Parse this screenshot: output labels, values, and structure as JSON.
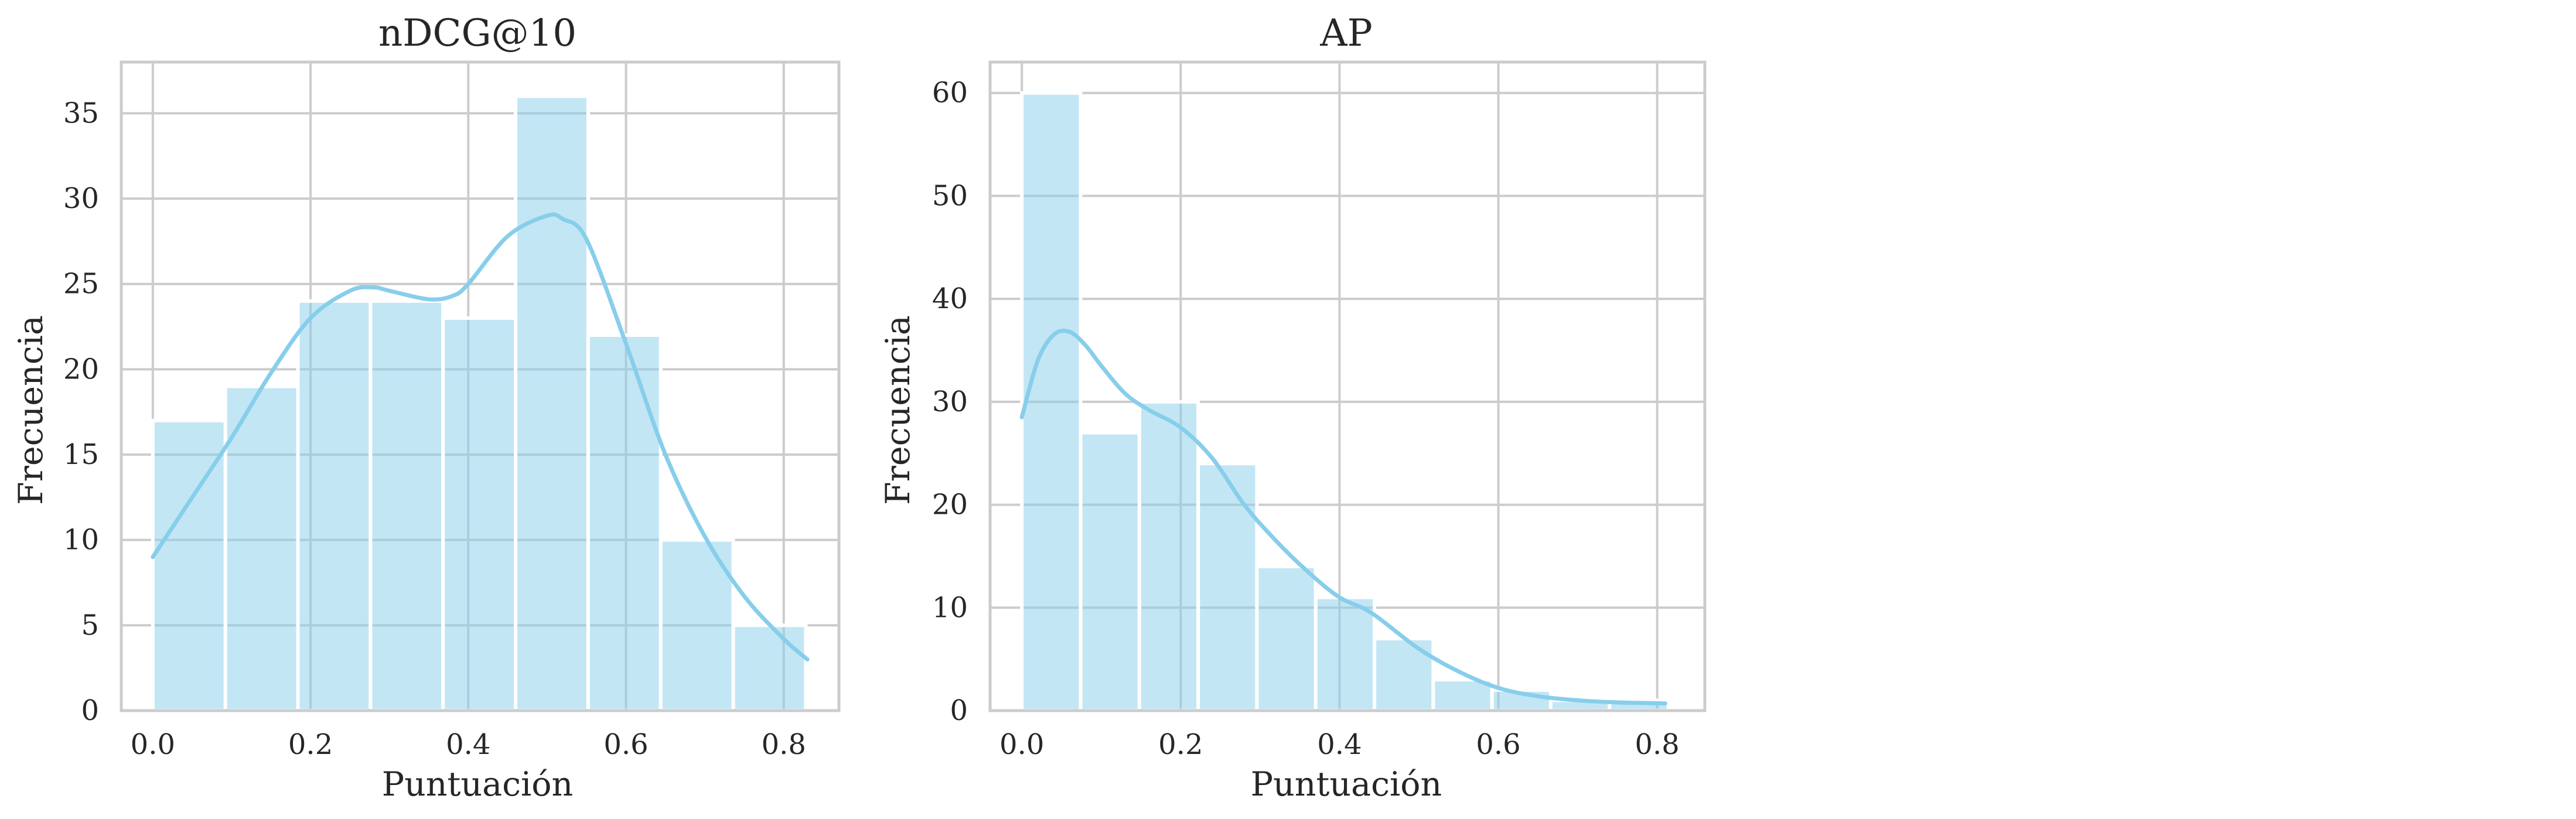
{
  "style": {
    "bar_color": "#87ceeb",
    "bar_opacity": 0.5,
    "kde_color": "#87ceeb",
    "grid_color": "#cccccc",
    "text_color": "#262626"
  },
  "chart_data": [
    {
      "type": "bar",
      "subtype": "histogram-with-kde",
      "title": "nDCG@10",
      "xlabel": "Puntuación",
      "ylabel": "Frecuencia",
      "xlim": [
        -0.04,
        0.87
      ],
      "ylim": [
        0,
        38
      ],
      "xticks": [
        0.0,
        0.2,
        0.4,
        0.6,
        0.8
      ],
      "xtick_labels": [
        "0.0",
        "0.2",
        "0.4",
        "0.6",
        "0.8"
      ],
      "yticks": [
        0,
        5,
        10,
        15,
        20,
        25,
        30,
        35
      ],
      "ytick_labels": [
        "0",
        "5",
        "10",
        "15",
        "20",
        "25",
        "30",
        "35"
      ],
      "grid": true,
      "bins": [
        {
          "x0": 0.0,
          "x1": 0.092,
          "count": 17
        },
        {
          "x0": 0.092,
          "x1": 0.184,
          "count": 19
        },
        {
          "x0": 0.184,
          "x1": 0.276,
          "count": 24
        },
        {
          "x0": 0.276,
          "x1": 0.368,
          "count": 24
        },
        {
          "x0": 0.368,
          "x1": 0.46,
          "count": 23
        },
        {
          "x0": 0.46,
          "x1": 0.552,
          "count": 36
        },
        {
          "x0": 0.552,
          "x1": 0.644,
          "count": 22
        },
        {
          "x0": 0.644,
          "x1": 0.736,
          "count": 10
        },
        {
          "x0": 0.736,
          "x1": 0.828,
          "count": 5
        }
      ],
      "kde": {
        "x": [
          0.0,
          0.05,
          0.1,
          0.15,
          0.2,
          0.25,
          0.28,
          0.3,
          0.35,
          0.38,
          0.4,
          0.45,
          0.5,
          0.52,
          0.55,
          0.6,
          0.65,
          0.7,
          0.75,
          0.8,
          0.83
        ],
        "y": [
          9,
          12.5,
          16,
          19.8,
          23,
          24.6,
          24.8,
          24.6,
          24.1,
          24.3,
          25,
          27.8,
          29,
          28.8,
          27.6,
          21.5,
          15,
          10.2,
          6.7,
          4.2,
          3
        ]
      }
    },
    {
      "type": "bar",
      "subtype": "histogram-with-kde",
      "title": "AP",
      "xlabel": "Puntuación",
      "ylabel": "Frecuencia",
      "xlim": [
        -0.04,
        0.86
      ],
      "ylim": [
        0,
        63
      ],
      "xticks": [
        0.0,
        0.2,
        0.4,
        0.6,
        0.8
      ],
      "xtick_labels": [
        "0.0",
        "0.2",
        "0.4",
        "0.6",
        "0.8"
      ],
      "yticks": [
        0,
        10,
        20,
        30,
        40,
        50,
        60
      ],
      "ytick_labels": [
        "0",
        "10",
        "20",
        "30",
        "40",
        "50",
        "60"
      ],
      "grid": true,
      "bins": [
        {
          "x0": 0.0,
          "x1": 0.074,
          "count": 60
        },
        {
          "x0": 0.074,
          "x1": 0.148,
          "count": 27
        },
        {
          "x0": 0.148,
          "x1": 0.222,
          "count": 30
        },
        {
          "x0": 0.222,
          "x1": 0.296,
          "count": 24
        },
        {
          "x0": 0.296,
          "x1": 0.37,
          "count": 14
        },
        {
          "x0": 0.37,
          "x1": 0.444,
          "count": 11
        },
        {
          "x0": 0.444,
          "x1": 0.518,
          "count": 7
        },
        {
          "x0": 0.518,
          "x1": 0.592,
          "count": 3
        },
        {
          "x0": 0.592,
          "x1": 0.666,
          "count": 2
        },
        {
          "x0": 0.666,
          "x1": 0.74,
          "count": 1
        },
        {
          "x0": 0.74,
          "x1": 0.814,
          "count": 1
        }
      ],
      "kde": {
        "x": [
          0.0,
          0.02,
          0.04,
          0.06,
          0.08,
          0.1,
          0.13,
          0.16,
          0.2,
          0.24,
          0.28,
          0.32,
          0.36,
          0.4,
          0.44,
          0.5,
          0.55,
          0.6,
          0.65,
          0.7,
          0.75,
          0.81
        ],
        "y": [
          28.5,
          34,
          36.5,
          36.8,
          35.5,
          33.5,
          30.8,
          29.2,
          27.5,
          24.5,
          20,
          16.5,
          13.5,
          11,
          9.5,
          6,
          3.8,
          2.2,
          1.4,
          1,
          0.8,
          0.7
        ]
      }
    }
  ]
}
